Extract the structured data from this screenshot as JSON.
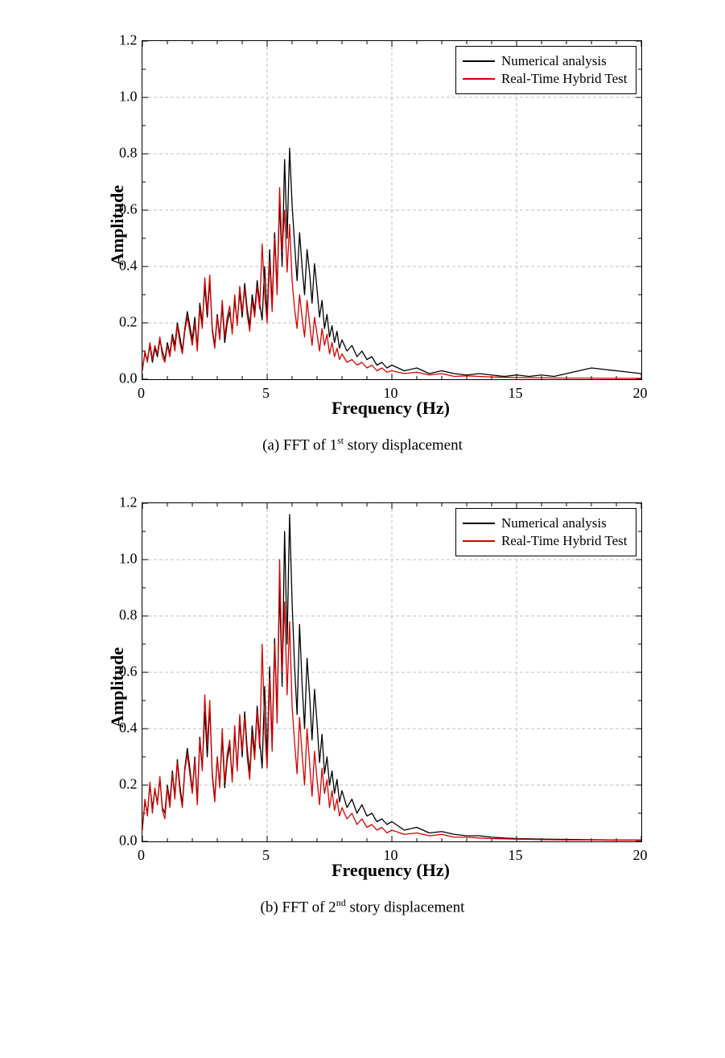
{
  "charts": [
    {
      "id": "chart-a",
      "type": "line",
      "xlabel": "Frequency (Hz)",
      "ylabel": "Amplitude",
      "label_fontsize": 22,
      "tick_fontsize": 18,
      "xlim": [
        0,
        20
      ],
      "ylim": [
        0.0,
        1.2
      ],
      "xtick_step": 5,
      "ytick_step": 0.2,
      "xminor_step": 1,
      "yminor_step": 0.1,
      "background_color": "#ffffff",
      "border_color": "#000000",
      "grid_color": "#bfbfbf",
      "grid_dash": "4,3",
      "tick_length_major": 7,
      "tick_length_minor": 4,
      "line_width": 1.3,
      "legend": {
        "position": "top-right",
        "border_color": "#000000",
        "background": "#ffffff",
        "items": [
          {
            "label": "Numerical analysis",
            "color": "#000000"
          },
          {
            "label": "Real-Time Hybrid Test",
            "color": "#d70000"
          }
        ]
      },
      "caption_prefix": "(a) FFT of 1",
      "caption_sup": "st",
      "caption_suffix": " story displacement",
      "series": [
        {
          "name": "Numerical analysis",
          "color": "#000000",
          "x": [
            0,
            0.1,
            0.2,
            0.3,
            0.4,
            0.5,
            0.6,
            0.7,
            0.8,
            0.9,
            1.0,
            1.1,
            1.2,
            1.3,
            1.4,
            1.5,
            1.6,
            1.7,
            1.8,
            1.9,
            2.0,
            2.1,
            2.2,
            2.3,
            2.4,
            2.5,
            2.6,
            2.7,
            2.8,
            2.9,
            3.0,
            3.1,
            3.2,
            3.3,
            3.4,
            3.5,
            3.6,
            3.7,
            3.8,
            3.9,
            4.0,
            4.1,
            4.2,
            4.3,
            4.4,
            4.5,
            4.6,
            4.7,
            4.8,
            4.9,
            5.0,
            5.1,
            5.2,
            5.3,
            5.4,
            5.5,
            5.6,
            5.7,
            5.8,
            5.9,
            6.0,
            6.1,
            6.2,
            6.3,
            6.4,
            6.5,
            6.6,
            6.7,
            6.8,
            6.9,
            7.0,
            7.1,
            7.2,
            7.3,
            7.4,
            7.5,
            7.6,
            7.7,
            7.8,
            7.9,
            8.0,
            8.2,
            8.4,
            8.6,
            8.8,
            9.0,
            9.2,
            9.4,
            9.6,
            9.8,
            10.0,
            10.5,
            11.0,
            11.5,
            12.0,
            12.5,
            13.0,
            13.5,
            14.0,
            14.5,
            15.0,
            15.5,
            16.0,
            16.5,
            17.0,
            17.5,
            18.0,
            18.5,
            19.0,
            19.5,
            20.0
          ],
          "y": [
            0.04,
            0.09,
            0.07,
            0.12,
            0.06,
            0.11,
            0.08,
            0.14,
            0.1,
            0.07,
            0.13,
            0.09,
            0.16,
            0.12,
            0.2,
            0.15,
            0.1,
            0.18,
            0.24,
            0.19,
            0.14,
            0.22,
            0.11,
            0.27,
            0.2,
            0.33,
            0.22,
            0.35,
            0.18,
            0.12,
            0.23,
            0.15,
            0.26,
            0.13,
            0.2,
            0.24,
            0.17,
            0.28,
            0.2,
            0.31,
            0.22,
            0.34,
            0.25,
            0.19,
            0.3,
            0.24,
            0.35,
            0.27,
            0.21,
            0.4,
            0.22,
            0.46,
            0.26,
            0.52,
            0.32,
            0.63,
            0.4,
            0.78,
            0.5,
            0.82,
            0.62,
            0.48,
            0.35,
            0.52,
            0.4,
            0.3,
            0.46,
            0.38,
            0.27,
            0.41,
            0.32,
            0.22,
            0.28,
            0.18,
            0.23,
            0.15,
            0.19,
            0.13,
            0.17,
            0.11,
            0.14,
            0.1,
            0.12,
            0.08,
            0.1,
            0.07,
            0.08,
            0.05,
            0.06,
            0.04,
            0.05,
            0.03,
            0.04,
            0.02,
            0.03,
            0.02,
            0.015,
            0.02,
            0.015,
            0.01,
            0.015,
            0.01,
            0.015,
            0.01,
            0.02,
            0.03,
            0.04,
            0.035,
            0.03,
            0.025,
            0.02
          ]
        },
        {
          "name": "Real-Time Hybrid Test",
          "color": "#d70000",
          "x": [
            0,
            0.1,
            0.2,
            0.3,
            0.4,
            0.5,
            0.6,
            0.7,
            0.8,
            0.9,
            1.0,
            1.1,
            1.2,
            1.3,
            1.4,
            1.5,
            1.6,
            1.7,
            1.8,
            1.9,
            2.0,
            2.1,
            2.2,
            2.3,
            2.4,
            2.5,
            2.6,
            2.7,
            2.8,
            2.9,
            3.0,
            3.1,
            3.2,
            3.3,
            3.4,
            3.5,
            3.6,
            3.7,
            3.8,
            3.9,
            4.0,
            4.1,
            4.2,
            4.3,
            4.4,
            4.5,
            4.6,
            4.7,
            4.8,
            4.9,
            5.0,
            5.1,
            5.2,
            5.3,
            5.4,
            5.5,
            5.6,
            5.7,
            5.8,
            5.9,
            6.0,
            6.1,
            6.2,
            6.3,
            6.4,
            6.5,
            6.6,
            6.7,
            6.8,
            6.9,
            7.0,
            7.1,
            7.2,
            7.3,
            7.4,
            7.5,
            7.6,
            7.7,
            7.8,
            7.9,
            8.0,
            8.2,
            8.4,
            8.6,
            8.8,
            9.0,
            9.2,
            9.4,
            9.6,
            9.8,
            10.0,
            10.5,
            11.0,
            11.5,
            12.0,
            12.5,
            13.0,
            13.5,
            14.0,
            14.5,
            15.0,
            16.0,
            17.0,
            18.0,
            19.0,
            20.0
          ],
          "y": [
            0.03,
            0.1,
            0.06,
            0.13,
            0.07,
            0.12,
            0.09,
            0.15,
            0.08,
            0.06,
            0.12,
            0.08,
            0.15,
            0.1,
            0.19,
            0.13,
            0.09,
            0.17,
            0.22,
            0.17,
            0.12,
            0.2,
            0.1,
            0.25,
            0.18,
            0.36,
            0.24,
            0.37,
            0.17,
            0.11,
            0.22,
            0.14,
            0.28,
            0.15,
            0.22,
            0.26,
            0.16,
            0.3,
            0.19,
            0.33,
            0.24,
            0.32,
            0.23,
            0.17,
            0.28,
            0.22,
            0.33,
            0.25,
            0.48,
            0.3,
            0.2,
            0.42,
            0.24,
            0.5,
            0.3,
            0.68,
            0.45,
            0.6,
            0.38,
            0.55,
            0.35,
            0.25,
            0.18,
            0.3,
            0.22,
            0.15,
            0.28,
            0.2,
            0.12,
            0.22,
            0.16,
            0.1,
            0.18,
            0.12,
            0.16,
            0.09,
            0.13,
            0.08,
            0.11,
            0.07,
            0.09,
            0.06,
            0.07,
            0.05,
            0.06,
            0.04,
            0.05,
            0.03,
            0.04,
            0.025,
            0.03,
            0.02,
            0.025,
            0.015,
            0.02,
            0.01,
            0.012,
            0.01,
            0.008,
            0.007,
            0.006,
            0.005,
            0.004,
            0.004,
            0.003,
            0.003
          ]
        }
      ]
    },
    {
      "id": "chart-b",
      "type": "line",
      "xlabel": "Frequency (Hz)",
      "ylabel": "Amplitude",
      "label_fontsize": 22,
      "tick_fontsize": 18,
      "xlim": [
        0,
        20
      ],
      "ylim": [
        0.0,
        1.2
      ],
      "xtick_step": 5,
      "ytick_step": 0.2,
      "xminor_step": 1,
      "yminor_step": 0.1,
      "background_color": "#ffffff",
      "border_color": "#000000",
      "grid_color": "#bfbfbf",
      "grid_dash": "4,3",
      "tick_length_major": 7,
      "tick_length_minor": 4,
      "line_width": 1.3,
      "legend": {
        "position": "top-right",
        "border_color": "#000000",
        "background": "#ffffff",
        "items": [
          {
            "label": "Numerical analysis",
            "color": "#000000"
          },
          {
            "label": "Real-Time Hybrid Test",
            "color": "#d70000"
          }
        ]
      },
      "caption_prefix": "(b) FFT of 2",
      "caption_sup": "nd",
      "caption_suffix": " story displacement",
      "series": [
        {
          "name": "Numerical analysis",
          "color": "#000000",
          "x": [
            0,
            0.1,
            0.2,
            0.3,
            0.4,
            0.5,
            0.6,
            0.7,
            0.8,
            0.9,
            1.0,
            1.1,
            1.2,
            1.3,
            1.4,
            1.5,
            1.6,
            1.7,
            1.8,
            1.9,
            2.0,
            2.1,
            2.2,
            2.3,
            2.4,
            2.5,
            2.6,
            2.7,
            2.8,
            2.9,
            3.0,
            3.1,
            3.2,
            3.3,
            3.4,
            3.5,
            3.6,
            3.7,
            3.8,
            3.9,
            4.0,
            4.1,
            4.2,
            4.3,
            4.4,
            4.5,
            4.6,
            4.7,
            4.8,
            4.9,
            5.0,
            5.1,
            5.2,
            5.3,
            5.4,
            5.5,
            5.6,
            5.7,
            5.8,
            5.9,
            6.0,
            6.1,
            6.2,
            6.3,
            6.4,
            6.5,
            6.6,
            6.7,
            6.8,
            6.9,
            7.0,
            7.1,
            7.2,
            7.3,
            7.4,
            7.5,
            7.6,
            7.7,
            7.8,
            7.9,
            8.0,
            8.2,
            8.4,
            8.6,
            8.8,
            9.0,
            9.2,
            9.4,
            9.6,
            9.8,
            10.0,
            10.5,
            11.0,
            11.5,
            12.0,
            12.5,
            13.0,
            13.5,
            14.0,
            14.5,
            15.0,
            16.0,
            17.0,
            18.0,
            19.0,
            20.0
          ],
          "y": [
            0.05,
            0.14,
            0.1,
            0.2,
            0.12,
            0.18,
            0.14,
            0.22,
            0.12,
            0.1,
            0.2,
            0.14,
            0.25,
            0.16,
            0.29,
            0.2,
            0.13,
            0.26,
            0.33,
            0.26,
            0.18,
            0.3,
            0.14,
            0.37,
            0.26,
            0.46,
            0.3,
            0.48,
            0.24,
            0.15,
            0.3,
            0.2,
            0.37,
            0.19,
            0.29,
            0.34,
            0.22,
            0.39,
            0.26,
            0.43,
            0.3,
            0.46,
            0.33,
            0.24,
            0.41,
            0.31,
            0.48,
            0.36,
            0.26,
            0.55,
            0.3,
            0.62,
            0.34,
            0.72,
            0.45,
            0.9,
            0.55,
            1.1,
            0.7,
            1.16,
            0.85,
            0.62,
            0.45,
            0.77,
            0.56,
            0.4,
            0.65,
            0.52,
            0.36,
            0.54,
            0.42,
            0.28,
            0.38,
            0.24,
            0.3,
            0.2,
            0.25,
            0.17,
            0.22,
            0.14,
            0.18,
            0.12,
            0.15,
            0.1,
            0.13,
            0.09,
            0.1,
            0.07,
            0.08,
            0.06,
            0.07,
            0.04,
            0.05,
            0.03,
            0.035,
            0.025,
            0.02,
            0.02,
            0.015,
            0.012,
            0.01,
            0.008,
            0.007,
            0.006,
            0.005,
            0.005
          ]
        },
        {
          "name": "Real-Time Hybrid Test",
          "color": "#d70000",
          "x": [
            0,
            0.1,
            0.2,
            0.3,
            0.4,
            0.5,
            0.6,
            0.7,
            0.8,
            0.9,
            1.0,
            1.1,
            1.2,
            1.3,
            1.4,
            1.5,
            1.6,
            1.7,
            1.8,
            1.9,
            2.0,
            2.1,
            2.2,
            2.3,
            2.4,
            2.5,
            2.6,
            2.7,
            2.8,
            2.9,
            3.0,
            3.1,
            3.2,
            3.3,
            3.4,
            3.5,
            3.6,
            3.7,
            3.8,
            3.9,
            4.0,
            4.1,
            4.2,
            4.3,
            4.4,
            4.5,
            4.6,
            4.7,
            4.8,
            4.9,
            5.0,
            5.1,
            5.2,
            5.3,
            5.4,
            5.5,
            5.6,
            5.7,
            5.8,
            5.9,
            6.0,
            6.1,
            6.2,
            6.3,
            6.4,
            6.5,
            6.6,
            6.7,
            6.8,
            6.9,
            7.0,
            7.1,
            7.2,
            7.3,
            7.4,
            7.5,
            7.6,
            7.7,
            7.8,
            7.9,
            8.0,
            8.2,
            8.4,
            8.6,
            8.8,
            9.0,
            9.2,
            9.4,
            9.6,
            9.8,
            10.0,
            10.5,
            11.0,
            11.5,
            12.0,
            12.5,
            13.0,
            13.5,
            14.0,
            14.5,
            15.0,
            16.0,
            17.0,
            18.0,
            19.0,
            20.0
          ],
          "y": [
            0.04,
            0.15,
            0.09,
            0.21,
            0.1,
            0.19,
            0.13,
            0.23,
            0.11,
            0.08,
            0.19,
            0.12,
            0.24,
            0.15,
            0.28,
            0.18,
            0.12,
            0.25,
            0.31,
            0.24,
            0.17,
            0.29,
            0.13,
            0.36,
            0.25,
            0.52,
            0.34,
            0.5,
            0.23,
            0.14,
            0.3,
            0.19,
            0.4,
            0.21,
            0.31,
            0.36,
            0.21,
            0.41,
            0.25,
            0.45,
            0.32,
            0.44,
            0.3,
            0.22,
            0.38,
            0.29,
            0.46,
            0.33,
            0.7,
            0.4,
            0.26,
            0.58,
            0.32,
            0.7,
            0.42,
            1.0,
            0.6,
            0.85,
            0.52,
            0.78,
            0.48,
            0.35,
            0.24,
            0.44,
            0.31,
            0.2,
            0.4,
            0.28,
            0.16,
            0.32,
            0.22,
            0.13,
            0.26,
            0.17,
            0.22,
            0.12,
            0.18,
            0.11,
            0.15,
            0.09,
            0.12,
            0.08,
            0.1,
            0.06,
            0.08,
            0.05,
            0.06,
            0.04,
            0.05,
            0.03,
            0.04,
            0.025,
            0.03,
            0.02,
            0.025,
            0.015,
            0.015,
            0.012,
            0.01,
            0.009,
            0.008,
            0.006,
            0.005,
            0.005,
            0.004,
            0.004
          ]
        }
      ]
    }
  ]
}
